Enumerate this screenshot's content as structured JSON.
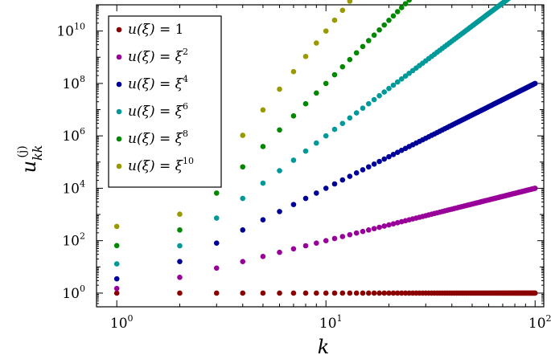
{
  "chart_data": {
    "type": "scatter",
    "xlabel": "k",
    "ylabel": "u_kk^(j)",
    "ylabel_main": "u",
    "ylabel_sub": "kk",
    "ylabel_sup": "(j)",
    "xscale": "log",
    "yscale": "log",
    "xlim": [
      0.8,
      110
    ],
    "ylim": [
      0.3,
      100000000000
    ],
    "grid": false,
    "legend_position": "top-left",
    "x_ticks": [
      {
        "value": 1,
        "base": "10",
        "exp": "0"
      },
      {
        "value": 10,
        "base": "10",
        "exp": "1"
      },
      {
        "value": 100,
        "base": "10",
        "exp": "2"
      }
    ],
    "y_ticks": [
      {
        "value": 1,
        "base": "10",
        "exp": "0"
      },
      {
        "value": 100,
        "base": "10",
        "exp": "2"
      },
      {
        "value": 10000,
        "base": "10",
        "exp": "4"
      },
      {
        "value": 1000000,
        "base": "10",
        "exp": "6"
      },
      {
        "value": 100000000,
        "base": "10",
        "exp": "8"
      },
      {
        "value": 10000000000,
        "base": "10",
        "exp": "10"
      }
    ],
    "x": [
      1,
      2,
      3,
      4,
      5,
      6,
      7,
      8,
      9,
      10,
      11,
      12,
      13,
      14,
      15,
      16,
      17,
      18,
      19,
      20,
      21,
      22,
      23,
      24,
      25,
      26,
      27,
      28,
      29,
      30,
      31,
      32,
      33,
      34,
      35,
      36,
      37,
      38,
      39,
      40,
      41,
      42,
      43,
      44,
      45,
      46,
      47,
      48,
      49,
      50,
      51,
      52,
      53,
      54,
      55,
      56,
      57,
      58,
      59,
      60,
      61,
      62,
      63,
      64,
      65,
      66,
      67,
      68,
      69,
      70,
      71,
      72,
      73,
      74,
      75,
      76,
      77,
      78,
      79,
      80,
      81,
      82,
      83,
      84,
      85,
      86,
      87,
      88,
      89,
      90,
      91,
      92,
      93,
      94,
      95,
      96,
      97,
      98,
      99,
      100
    ],
    "series": [
      {
        "name_prefix": "u(ξ) = ",
        "name_base": "1",
        "name_exp": "",
        "exponent": 0,
        "color": "#8b0000"
      },
      {
        "name_prefix": "u(ξ) = ",
        "name_base": "ξ",
        "name_exp": "2",
        "exponent": 1,
        "color": "#990099"
      },
      {
        "name_prefix": "u(ξ) = ",
        "name_base": "ξ",
        "name_exp": "4",
        "exponent": 2,
        "color": "#000099"
      },
      {
        "name_prefix": "u(ξ) = ",
        "name_base": "ξ",
        "name_exp": "6",
        "exponent": 3,
        "color": "#009999"
      },
      {
        "name_prefix": "u(ξ) = ",
        "name_base": "ξ",
        "name_exp": "8",
        "exponent": 4,
        "color": "#008800"
      },
      {
        "name_prefix": "u(ξ) = ",
        "name_base": "ξ",
        "name_exp": "10",
        "exponent": 5,
        "color": "#999900"
      }
    ],
    "first_point_values": [
      1,
      1.5,
      3.5,
      13,
      65,
      350
    ]
  }
}
